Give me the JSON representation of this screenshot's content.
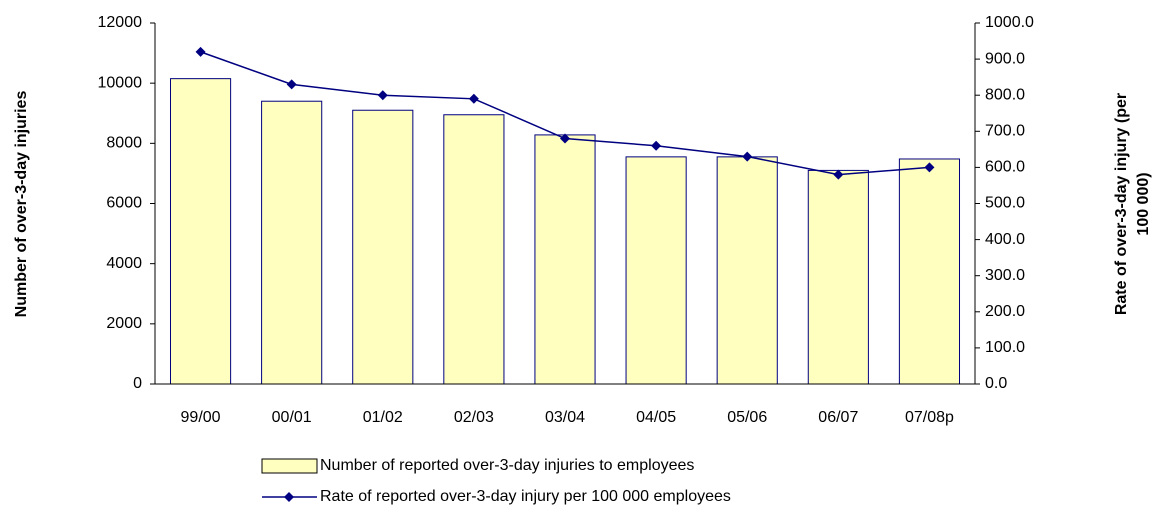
{
  "chart_data": {
    "type": "bar_line",
    "categories": [
      "99/00",
      "00/01",
      "01/02",
      "02/03",
      "03/04",
      "04/05",
      "05/06",
      "06/07",
      "07/08p"
    ],
    "series": [
      {
        "name": "Number of reported over-3-day injuries to employees",
        "type": "bar",
        "color": "#ffffc0",
        "edgecolor": "#000080",
        "values": [
          10150,
          9400,
          9100,
          8950,
          8280,
          7550,
          7550,
          7100,
          7480
        ]
      },
      {
        "name": "Rate of reported over-3-day injury per 100 000 employees",
        "type": "line",
        "axis": "y2",
        "color": "#000080",
        "values": [
          920,
          830,
          800,
          790,
          680,
          660,
          630,
          580,
          600
        ]
      }
    ],
    "ylabel": "Number of over-3-day injuries",
    "y2label": [
      "Rate of over-3-day injury (per",
      "100 000)"
    ],
    "ylim": [
      0,
      12000
    ],
    "yticks": [
      0,
      2000,
      4000,
      6000,
      8000,
      10000,
      12000
    ],
    "y2lim": [
      0,
      1000
    ],
    "y2ticks": [
      {
        "value": 0,
        "label": "0.0"
      },
      {
        "value": 100,
        "label": "100.0"
      },
      {
        "value": 200,
        "label": "200.0"
      },
      {
        "value": 300,
        "label": "300.0"
      },
      {
        "value": 400,
        "label": "400.0"
      },
      {
        "value": 500,
        "label": "500.0"
      },
      {
        "value": 600,
        "label": "600.0"
      },
      {
        "value": 700,
        "label": "700.0"
      },
      {
        "value": 800,
        "label": "800.0"
      },
      {
        "value": 900,
        "label": "900.0"
      },
      {
        "value": 1000,
        "label": "1000.0"
      }
    ],
    "grid": false,
    "legend": "bottom"
  }
}
